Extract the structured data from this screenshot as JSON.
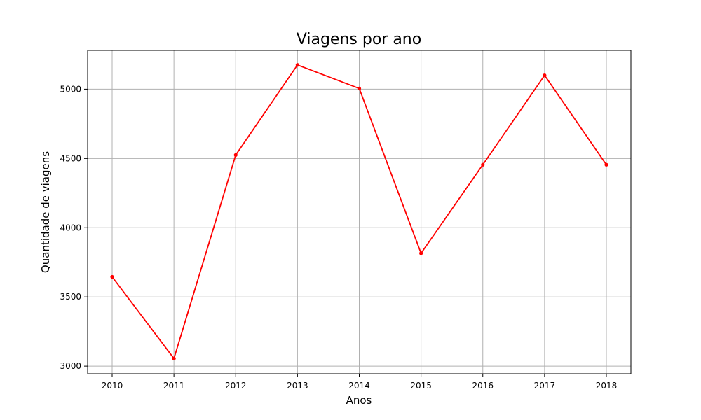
{
  "chart_data": {
    "type": "line",
    "title": "Viagens por ano",
    "xlabel": "Anos",
    "ylabel": "Quantidade de viagens",
    "categories": [
      "2010",
      "2011",
      "2012",
      "2013",
      "2014",
      "2015",
      "2016",
      "2017",
      "2018"
    ],
    "series": [
      {
        "values": [
          3645,
          3055,
          4525,
          5175,
          5005,
          3815,
          4455,
          5100,
          4455
        ],
        "color": "#ff0000",
        "marker": "circle"
      }
    ],
    "yticks": [
      "3000",
      "3500",
      "4000",
      "4500",
      "5000"
    ],
    "ylim": [
      2945,
      5280
    ],
    "grid": true,
    "legend": "none"
  }
}
